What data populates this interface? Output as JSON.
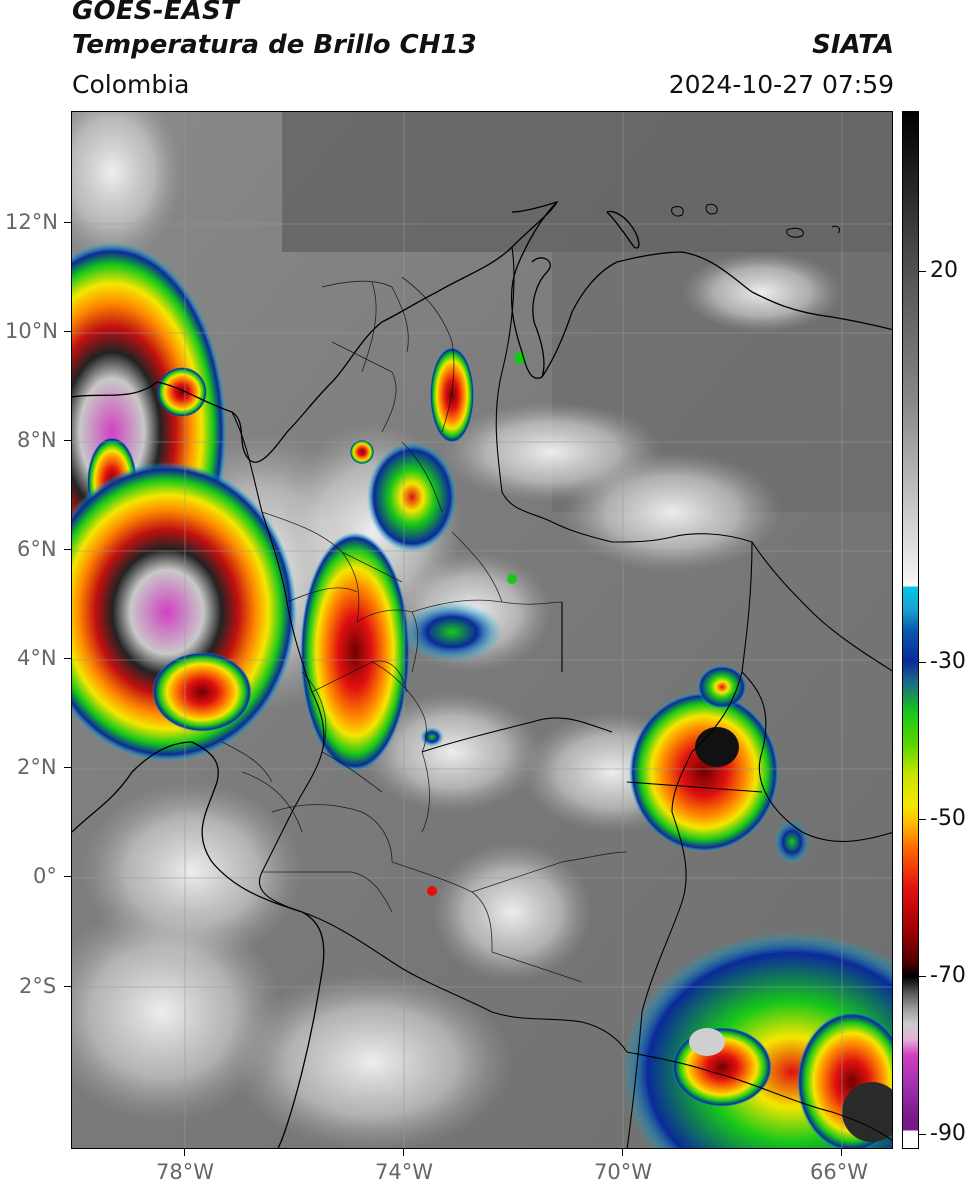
{
  "header": {
    "line1": "GOES-EAST",
    "line2": "Temperatura de Brillo CH13",
    "source": "SIATA",
    "region": "Colombia",
    "timestamp": "2024-10-27 07:59"
  },
  "axes": {
    "lat_labels": [
      "12°N",
      "10°N",
      "8°N",
      "6°N",
      "4°N",
      "2°N",
      "0°",
      "2°S"
    ],
    "lon_labels": [
      "78°W",
      "74°W",
      "70°W",
      "66°W"
    ]
  },
  "colorbar": {
    "tick_labels": [
      "20",
      "-30",
      "-50",
      "-70",
      "-90"
    ],
    "colors": {
      "light": "#f2f2f2",
      "cyan": "#00c8e6",
      "blue": "#0a2a9a",
      "green": "#18c818",
      "yellow": "#f5e600",
      "orange": "#ff8a00",
      "red": "#e01010",
      "darkred": "#700000",
      "black": "#000000",
      "magenta": "#d040c0",
      "purple": "#7a1a8a"
    }
  },
  "map": {
    "extent": {
      "lon_min": -79.5,
      "lon_max": -64.5,
      "lat_min": -4.8,
      "lat_max": 14.1
    }
  }
}
